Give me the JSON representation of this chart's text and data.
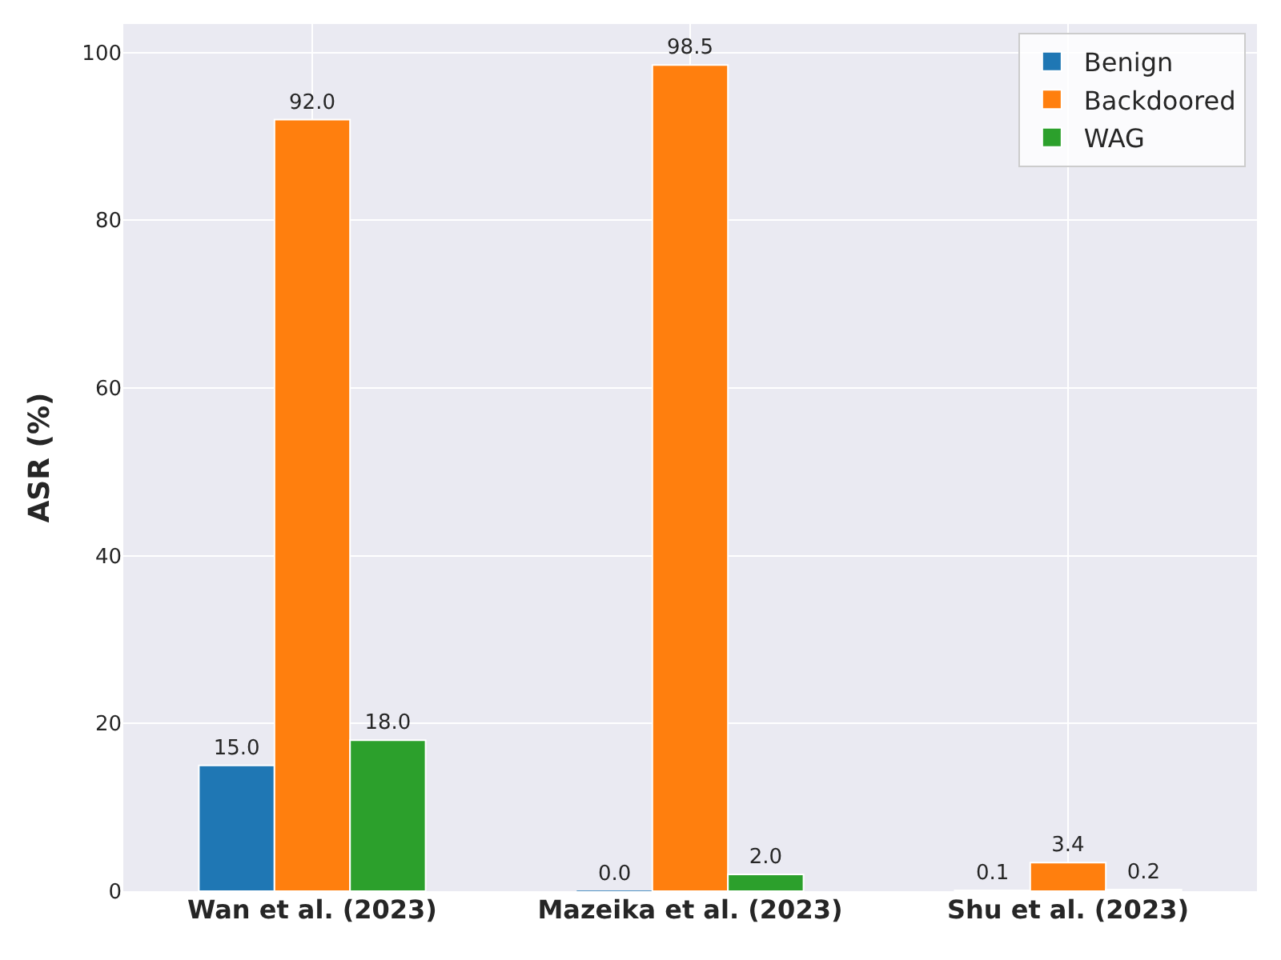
{
  "chart_data": {
    "type": "bar",
    "ylabel": "ASR (%)",
    "categories": [
      "Wan et al. (2023)",
      "Mazeika et al. (2023)",
      "Shu et al. (2023)"
    ],
    "series": [
      {
        "name": "Benign",
        "color": "#1f77b4",
        "values": [
          15.0,
          0.0,
          0.1
        ],
        "value_labels": [
          "15.0",
          "0.0",
          "0.1"
        ]
      },
      {
        "name": "Backdoored",
        "color": "#ff7f0e",
        "values": [
          92.0,
          98.5,
          3.4
        ],
        "value_labels": [
          "92.0",
          "98.5",
          "3.4"
        ]
      },
      {
        "name": "WAG",
        "color": "#2ca02c",
        "values": [
          18.0,
          2.0,
          0.2
        ],
        "value_labels": [
          "18.0",
          "2.0",
          "0.2"
        ]
      }
    ],
    "ylim": [
      0,
      103.4
    ],
    "yticks": [
      0,
      20,
      40,
      60,
      80,
      100
    ],
    "grid": true,
    "legend": "top right"
  }
}
